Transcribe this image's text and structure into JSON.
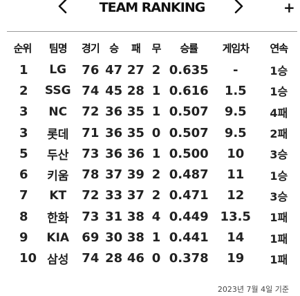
{
  "header": {
    "prev_icon": "chevron-left-icon",
    "next_icon": "chevron-right-icon",
    "title": "TEAM RANKING",
    "plus_label": "+"
  },
  "table": {
    "columns": [
      "순위",
      "팀명",
      "경기",
      "승",
      "패",
      "무",
      "승률",
      "게임차",
      "연속"
    ],
    "rows": [
      {
        "rank": "1",
        "team": "LG",
        "games": "76",
        "wins": "47",
        "losses": "27",
        "draws": "2",
        "pct": "0.635",
        "gb": "-",
        "streak": "1승"
      },
      {
        "rank": "2",
        "team": "SSG",
        "games": "74",
        "wins": "45",
        "losses": "28",
        "draws": "1",
        "pct": "0.616",
        "gb": "1.5",
        "streak": "1승"
      },
      {
        "rank": "3",
        "team": "NC",
        "games": "72",
        "wins": "36",
        "losses": "35",
        "draws": "1",
        "pct": "0.507",
        "gb": "9.5",
        "streak": "4패"
      },
      {
        "rank": "3",
        "team": "롯데",
        "games": "71",
        "wins": "36",
        "losses": "35",
        "draws": "0",
        "pct": "0.507",
        "gb": "9.5",
        "streak": "2패"
      },
      {
        "rank": "5",
        "team": "두산",
        "games": "73",
        "wins": "36",
        "losses": "36",
        "draws": "1",
        "pct": "0.500",
        "gb": "10",
        "streak": "3승"
      },
      {
        "rank": "6",
        "team": "키움",
        "games": "78",
        "wins": "37",
        "losses": "39",
        "draws": "2",
        "pct": "0.487",
        "gb": "11",
        "streak": "1승"
      },
      {
        "rank": "7",
        "team": "KT",
        "games": "72",
        "wins": "33",
        "losses": "37",
        "draws": "2",
        "pct": "0.471",
        "gb": "12",
        "streak": "3승"
      },
      {
        "rank": "8",
        "team": "한화",
        "games": "73",
        "wins": "31",
        "losses": "38",
        "draws": "4",
        "pct": "0.449",
        "gb": "13.5",
        "streak": "1패"
      },
      {
        "rank": "9",
        "team": "KIA",
        "games": "69",
        "wins": "30",
        "losses": "38",
        "draws": "1",
        "pct": "0.441",
        "gb": "14",
        "streak": "1패"
      },
      {
        "rank": "10",
        "team": "삼성",
        "games": "74",
        "wins": "28",
        "losses": "46",
        "draws": "0",
        "pct": "0.378",
        "gb": "19",
        "streak": "1패"
      }
    ]
  },
  "footer": {
    "date_note": "2023년 7월 4일 기준"
  }
}
